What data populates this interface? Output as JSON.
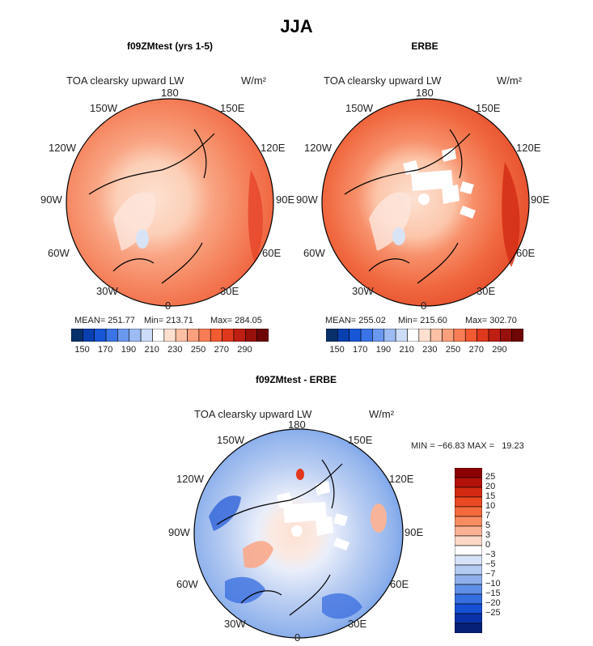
{
  "main_title": "JJA",
  "panels": [
    {
      "title": "f09ZMtest (yrs 1-5)",
      "plot_label": "TOA clearsky upward LW",
      "units": "W/m²",
      "stats": {
        "mean": "MEAN= 251.77",
        "min": "Min= 213.71",
        "max": "Max= 284.05"
      }
    },
    {
      "title": "ERBE",
      "plot_label": "TOA clearsky upward LW",
      "units": "W/m²",
      "stats": {
        "mean": "MEAN= 255.02",
        "min": "Min= 215.60",
        "max": "Max= 302.70"
      }
    },
    {
      "title": "f09ZMtest - ERBE",
      "plot_label": "TOA clearsky upward LW",
      "units": "W/m²",
      "stats": {
        "minmax": "MIN = −66.83 MAX =   19.23"
      }
    }
  ],
  "lon_labels": {
    "top": "180",
    "bottom": "0",
    "upper_left": "150W",
    "upper_right": "150E",
    "mid_upper_left": "120W",
    "mid_upper_right": "120E",
    "left": "90W",
    "right": "90E",
    "mid_lower_left": "60W",
    "mid_lower_right": "60E",
    "lower_left": "30W",
    "lower_right": "30E"
  },
  "colorbar_abs": {
    "tick_labels": [
      "150",
      "170",
      "190",
      "210",
      "230",
      "250",
      "270",
      "290"
    ],
    "colors": [
      "#08306b",
      "#0a3fb0",
      "#1756d6",
      "#3a74e6",
      "#6a98ee",
      "#9dbcf3",
      "#cdddf7",
      "#ffffff",
      "#fde0d0",
      "#fcc1a5",
      "#fb9f7d",
      "#f87d55",
      "#f25a32",
      "#e0381d",
      "#bf1e12",
      "#97100b",
      "#6e0606"
    ]
  },
  "colorbar_diff": {
    "tick_labels": [
      "25",
      "20",
      "15",
      "10",
      "7",
      "5",
      "3",
      "0",
      "−3",
      "−5",
      "−7",
      "−10",
      "−15",
      "−20",
      "−25"
    ],
    "colors": [
      "#8b0000",
      "#b3120a",
      "#d42a12",
      "#ea4a22",
      "#f46a3c",
      "#f98d61",
      "#fbb294",
      "#fdd8c7",
      "#ffffff",
      "#d6e2f7",
      "#b4caf1",
      "#8db0ec",
      "#5f8fe6",
      "#346ee0",
      "#1650d4",
      "#0a32a8",
      "#061f78"
    ]
  },
  "chart_data": [
    {
      "type": "heatmap",
      "title": "f09ZMtest (yrs 1-5)",
      "subtitle": "TOA clearsky upward LW",
      "units": "W/m²",
      "projection": "polar stereographic (north)",
      "mean": 251.77,
      "min": 213.71,
      "max": 284.05,
      "contour_levels": [
        150,
        160,
        170,
        180,
        190,
        200,
        210,
        220,
        230,
        240,
        250,
        260,
        270,
        280,
        290
      ]
    },
    {
      "type": "heatmap",
      "title": "ERBE",
      "subtitle": "TOA clearsky upward LW",
      "units": "W/m²",
      "projection": "polar stereographic (north)",
      "mean": 255.02,
      "min": 215.6,
      "max": 302.7,
      "contour_levels": [
        150,
        160,
        170,
        180,
        190,
        200,
        210,
        220,
        230,
        240,
        250,
        260,
        270,
        280,
        290
      ]
    },
    {
      "type": "heatmap",
      "title": "f09ZMtest - ERBE",
      "subtitle": "TOA clearsky upward LW",
      "units": "W/m²",
      "projection": "polar stereographic (north)",
      "min": -66.83,
      "max": 19.23,
      "contour_levels": [
        -25,
        -20,
        -15,
        -10,
        -7,
        -5,
        -3,
        0,
        3,
        5,
        7,
        10,
        15,
        20,
        25
      ]
    }
  ]
}
